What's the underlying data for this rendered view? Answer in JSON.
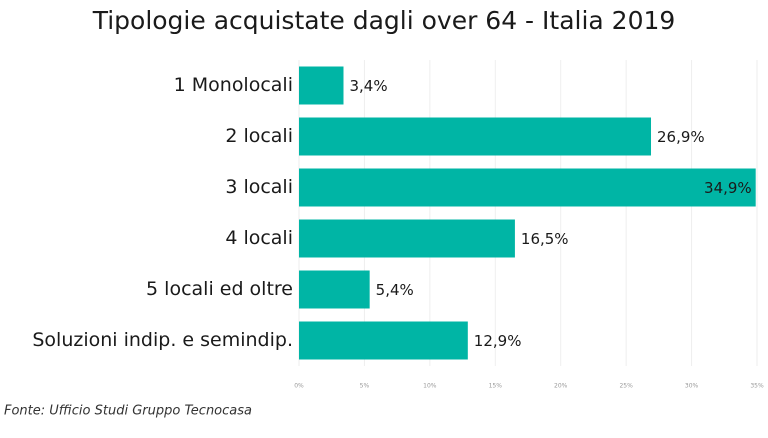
{
  "chart_data": {
    "type": "bar",
    "orientation": "horizontal",
    "title": "Tipologie acquistate dagli over 64 - Italia 2019",
    "categories": [
      "1 Monolocali",
      "2 locali",
      "3 locali",
      "4 locali",
      "5 locali ed oltre",
      "Soluzioni indip. e semindip."
    ],
    "values": [
      3.4,
      26.9,
      34.9,
      16.5,
      5.4,
      12.9
    ],
    "value_labels": [
      "3,4%",
      "26,9%",
      "34,9%",
      "16,5%",
      "5,4%",
      "12,9%"
    ],
    "color": "#00b5a5",
    "xlim": [
      0,
      35
    ],
    "xticks": [
      {
        "value": 0,
        "label": "0%"
      },
      {
        "value": 5,
        "label": "5%"
      },
      {
        "value": 10,
        "label": "10%"
      },
      {
        "value": 15,
        "label": "15%"
      },
      {
        "value": 20,
        "label": "20%"
      },
      {
        "value": 25,
        "label": "25%"
      },
      {
        "value": 30,
        "label": "30%"
      },
      {
        "value": 35,
        "label": "35%"
      }
    ],
    "grid": true,
    "source": "Fonte: Ufficio Studi Gruppo Tecnocasa"
  }
}
